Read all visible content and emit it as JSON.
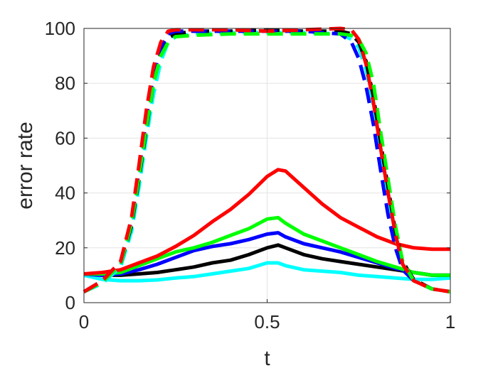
{
  "chart_data": {
    "type": "line",
    "title": "",
    "xlabel": "t",
    "ylabel": "error rate",
    "xlim": [
      0,
      1
    ],
    "ylim": [
      0,
      100
    ],
    "xticks": [
      0,
      0.5,
      1
    ],
    "xtick_labels": [
      "0",
      "0.5",
      "1"
    ],
    "yticks": [
      0,
      20,
      40,
      60,
      80,
      100
    ],
    "ytick_labels": [
      "0",
      "20",
      "40",
      "60",
      "80",
      "100"
    ],
    "grid": true,
    "legend": "none",
    "series": [
      {
        "color": "#00ffff",
        "style": "solid",
        "x": [
          0,
          0.05,
          0.1,
          0.15,
          0.2,
          0.25,
          0.3,
          0.35,
          0.4,
          0.45,
          0.5,
          0.53,
          0.55,
          0.6,
          0.65,
          0.7,
          0.75,
          0.8,
          0.85,
          0.9,
          0.95,
          1
        ],
        "y": [
          10,
          8.5,
          8,
          8,
          8.3,
          9,
          9.5,
          10.5,
          11.5,
          12.5,
          14.5,
          14.5,
          13.5,
          12,
          11.5,
          11,
          10,
          9.5,
          9,
          8.5,
          8.5,
          9
        ]
      },
      {
        "color": "#000000",
        "style": "solid",
        "x": [
          0,
          0.05,
          0.1,
          0.15,
          0.2,
          0.25,
          0.3,
          0.35,
          0.4,
          0.45,
          0.5,
          0.53,
          0.55,
          0.6,
          0.65,
          0.7,
          0.75,
          0.8,
          0.85,
          0.9,
          0.95,
          1
        ],
        "y": [
          10.5,
          10,
          10,
          10.5,
          11,
          12,
          13,
          14.5,
          15.5,
          17.5,
          20,
          21,
          20,
          17.5,
          16,
          15,
          14,
          13,
          12,
          11,
          10,
          10
        ]
      },
      {
        "color": "#0000ff",
        "style": "solid",
        "x": [
          0,
          0.05,
          0.1,
          0.15,
          0.2,
          0.25,
          0.3,
          0.35,
          0.4,
          0.45,
          0.5,
          0.53,
          0.55,
          0.6,
          0.65,
          0.7,
          0.75,
          0.8,
          0.85,
          0.9,
          0.95,
          1
        ],
        "y": [
          10.5,
          10,
          10.5,
          12,
          14,
          16.5,
          19,
          20.5,
          21.5,
          23,
          25,
          25.5,
          24,
          21.5,
          20,
          18.5,
          16.5,
          14.5,
          12.5,
          11,
          10,
          10
        ]
      },
      {
        "color": "#00ff00",
        "style": "solid",
        "x": [
          0,
          0.05,
          0.1,
          0.15,
          0.2,
          0.25,
          0.3,
          0.35,
          0.4,
          0.45,
          0.5,
          0.53,
          0.55,
          0.6,
          0.65,
          0.7,
          0.75,
          0.8,
          0.85,
          0.9,
          0.95,
          1
        ],
        "y": [
          10.5,
          10.5,
          11,
          13.5,
          16,
          18.5,
          20,
          22,
          24.5,
          27,
          30.5,
          31,
          29,
          25,
          22.5,
          20,
          17.5,
          15,
          13,
          11,
          10,
          10
        ]
      },
      {
        "color": "#ff0000",
        "style": "solid",
        "x": [
          0,
          0.05,
          0.1,
          0.15,
          0.2,
          0.25,
          0.3,
          0.35,
          0.4,
          0.45,
          0.5,
          0.53,
          0.55,
          0.6,
          0.65,
          0.7,
          0.75,
          0.8,
          0.85,
          0.9,
          0.95,
          1
        ],
        "y": [
          10.5,
          11,
          12,
          14.5,
          17,
          20.5,
          24.5,
          29.5,
          34,
          39.5,
          46,
          48.5,
          48,
          42,
          36,
          31,
          27.5,
          24,
          21.5,
          20,
          19.5,
          19.5
        ]
      },
      {
        "color": "#00ffff",
        "style": "dashed",
        "x": [
          0,
          0.05,
          0.1,
          0.13,
          0.15,
          0.17,
          0.19,
          0.21,
          0.23,
          0.25,
          0.3,
          0.4,
          0.5,
          0.6,
          0.7,
          0.73,
          0.75,
          0.77,
          0.79,
          0.81,
          0.83,
          0.85,
          0.87,
          0.9,
          0.95,
          1
        ],
        "y": [
          4,
          7,
          13,
          26,
          42,
          60,
          76,
          88,
          95,
          97,
          98,
          98.5,
          98.5,
          98.5,
          98,
          96,
          93,
          85,
          72,
          56,
          40,
          24,
          14,
          8,
          5,
          4
        ]
      },
      {
        "color": "#000000",
        "style": "dashed",
        "x": [
          0,
          0.05,
          0.1,
          0.13,
          0.15,
          0.17,
          0.19,
          0.21,
          0.23,
          0.25,
          0.3,
          0.4,
          0.5,
          0.6,
          0.7,
          0.73,
          0.75,
          0.77,
          0.79,
          0.81,
          0.83,
          0.85,
          0.87,
          0.9,
          0.95,
          1
        ],
        "y": [
          4,
          7.5,
          14,
          28,
          45,
          63,
          80,
          91,
          96.5,
          98,
          99,
          99,
          99.5,
          99,
          99,
          98,
          95,
          88,
          75,
          58,
          42,
          26,
          15,
          8.5,
          5,
          4
        ]
      },
      {
        "color": "#0000ff",
        "style": "dashed",
        "x": [
          0,
          0.05,
          0.1,
          0.13,
          0.15,
          0.17,
          0.19,
          0.21,
          0.23,
          0.25,
          0.3,
          0.4,
          0.5,
          0.6,
          0.7,
          0.73,
          0.75,
          0.77,
          0.79,
          0.81,
          0.83,
          0.85,
          0.87,
          0.9,
          0.95,
          1
        ],
        "y": [
          4,
          8,
          15,
          30,
          48,
          67,
          83,
          93,
          98,
          99,
          99,
          99,
          99,
          99,
          98,
          95,
          89,
          79,
          65,
          48,
          32,
          20,
          12,
          8,
          5,
          4
        ]
      },
      {
        "color": "#00ff00",
        "style": "dashed",
        "x": [
          0,
          0.05,
          0.1,
          0.13,
          0.15,
          0.17,
          0.19,
          0.21,
          0.23,
          0.25,
          0.3,
          0.4,
          0.5,
          0.6,
          0.7,
          0.73,
          0.75,
          0.77,
          0.79,
          0.81,
          0.83,
          0.85,
          0.87,
          0.9,
          0.95,
          1
        ],
        "y": [
          4,
          7.5,
          14,
          29,
          46,
          64,
          80,
          90,
          95,
          97,
          97.5,
          98,
          98,
          98,
          98,
          97.5,
          96,
          91,
          80,
          62,
          45,
          28,
          15,
          8,
          5,
          4
        ]
      },
      {
        "color": "#ff0000",
        "style": "dashed",
        "x": [
          0,
          0.05,
          0.1,
          0.13,
          0.15,
          0.17,
          0.19,
          0.21,
          0.23,
          0.25,
          0.3,
          0.4,
          0.5,
          0.6,
          0.7,
          0.73,
          0.75,
          0.77,
          0.79,
          0.81,
          0.83,
          0.85,
          0.87,
          0.9,
          0.95,
          1
        ],
        "y": [
          4,
          8,
          15,
          31,
          50,
          70,
          86,
          95,
          99,
          99.5,
          99.5,
          99.5,
          99,
          99.5,
          100,
          99.5,
          96,
          87,
          73,
          56,
          40,
          25,
          14,
          8,
          5,
          4
        ]
      }
    ]
  }
}
